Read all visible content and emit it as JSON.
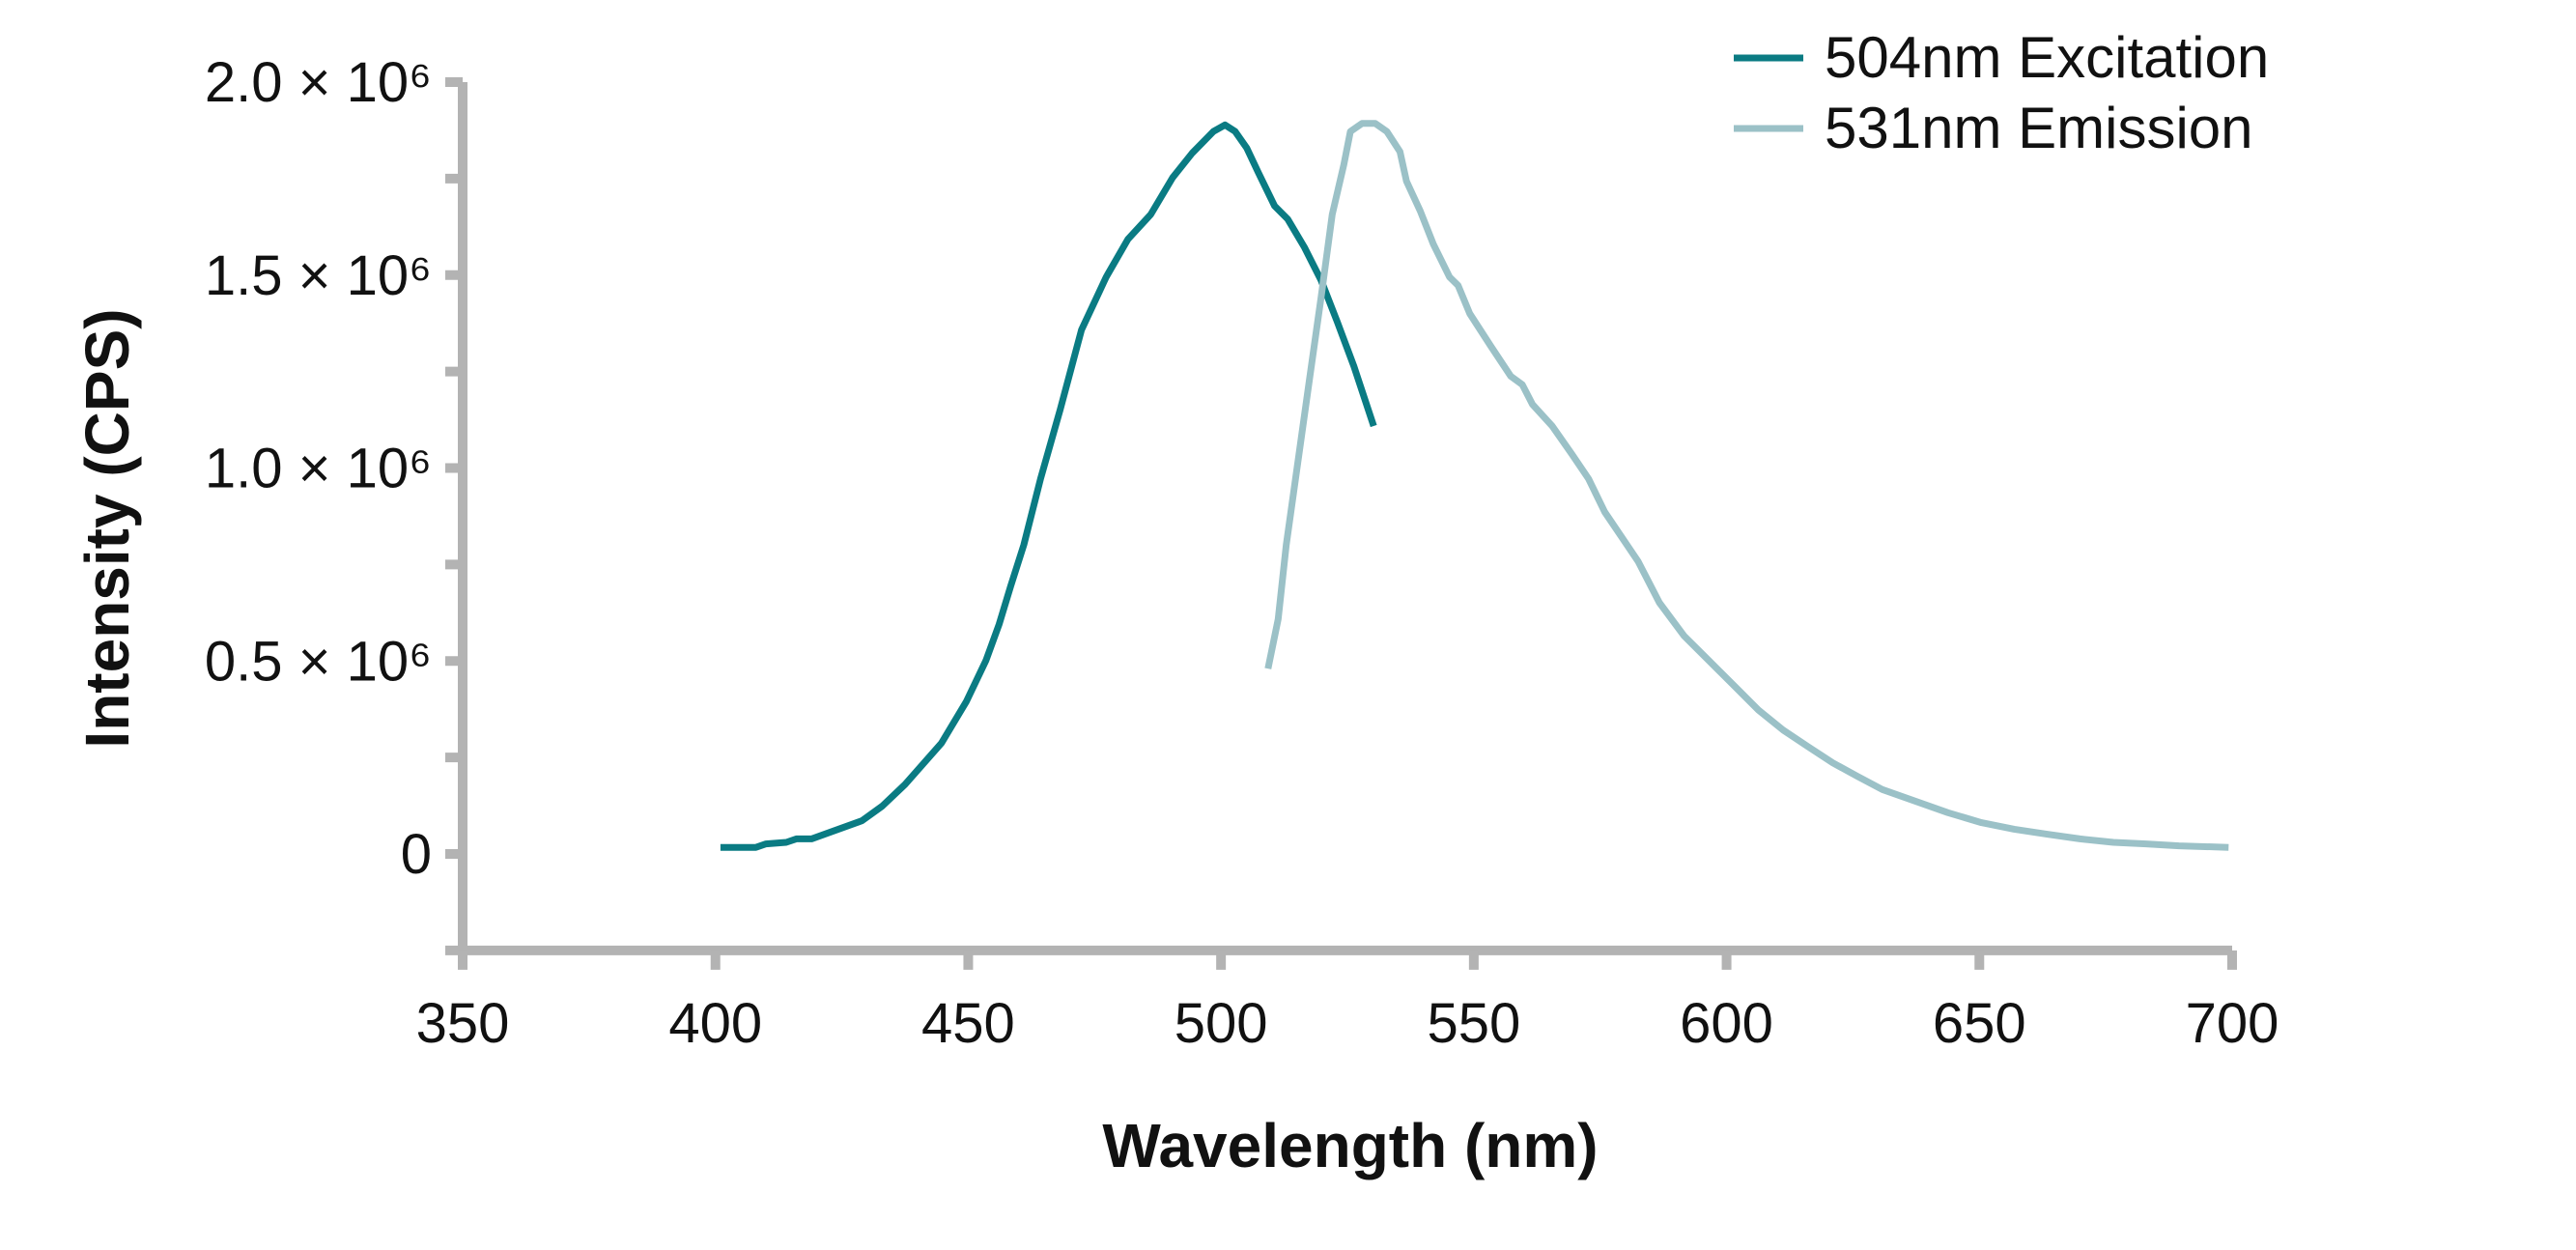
{
  "chart_data": {
    "type": "line",
    "title": "",
    "xlabel": "Wavelength (nm)",
    "ylabel": "Intensity (CPS)",
    "xlim": [
      350,
      700
    ],
    "ylim": [
      -250000,
      2000000
    ],
    "x_ticks": [
      350,
      400,
      450,
      500,
      550,
      600,
      650,
      700
    ],
    "x_tick_labels": [
      "350",
      "400",
      "450",
      "500",
      "550",
      "600",
      "650",
      "700"
    ],
    "y_ticks": [
      0,
      500000,
      1000000,
      1500000,
      2000000
    ],
    "y_tick_labels": [
      "0",
      "0.5 × 10⁶",
      "1.0 × 10⁶",
      "1.5 × 10⁶",
      "2.0 × 10⁶"
    ],
    "y_minor_ticks": [
      250000,
      750000,
      1250000,
      1750000
    ],
    "grid": false,
    "legend_position": "top-right",
    "series": [
      {
        "name": "504nm Excitation",
        "color": "#0a7b83",
        "x": [
          401,
          408,
          410,
          414,
          416,
          419,
          429,
          433,
          437.5,
          444.7,
          449.6,
          453.5,
          456.1,
          458.4,
          461,
          464.3,
          468.2,
          472.4,
          477.3,
          481.6,
          486.1,
          490.4,
          494.3,
          498.5,
          500.8,
          502.8,
          505.1,
          507.4,
          510.6,
          513.2,
          516.5,
          519.8,
          523,
          526.3,
          530.2
        ],
        "y": [
          17000,
          17000,
          26000,
          30000,
          39000,
          39000,
          86000,
          124000,
          180000,
          287000,
          394000,
          501000,
          595000,
          694000,
          801000,
          972000,
          1152000,
          1358000,
          1495000,
          1593000,
          1657000,
          1752000,
          1816000,
          1872000,
          1889000,
          1872000,
          1829000,
          1765000,
          1679000,
          1645000,
          1572000,
          1486000,
          1379000,
          1263000,
          1109000
        ]
      },
      {
        "name": "531nm Emission",
        "color": "#9bc1c7",
        "x": [
          509.3,
          511.3,
          512.9,
          515.2,
          517.5,
          519.8,
          522,
          524.3,
          525.6,
          527.9,
          530.5,
          532.8,
          535.4,
          536.7,
          539.4,
          542,
          545.2,
          546.9,
          549.2,
          553.4,
          557.3,
          559.6,
          561.6,
          565.5,
          569.4,
          572.7,
          575.9,
          579.2,
          582.5,
          586.7,
          591.6,
          596.5,
          601.4,
          606.3,
          611.2,
          616.1,
          621,
          625.9,
          630.8,
          637.3,
          643.8,
          650.4,
          656.9,
          663.4,
          669.9,
          676.5,
          683,
          689.5,
          699.3
        ],
        "y": [
          480000,
          608000,
          801000,
          1015000,
          1229000,
          1443000,
          1657000,
          1786000,
          1872000,
          1893000,
          1893000,
          1872000,
          1820000,
          1743000,
          1666000,
          1580000,
          1495000,
          1473000,
          1400000,
          1315000,
          1238000,
          1216000,
          1165000,
          1109000,
          1036000,
          972000,
          886000,
          822000,
          758000,
          651000,
          565000,
          501000,
          437000,
          373000,
          321000,
          278000,
          236000,
          201000,
          167000,
          137000,
          107000,
          81000,
          64000,
          51000,
          39000,
          30000,
          26000,
          21000,
          17000
        ]
      }
    ]
  },
  "legend": {
    "items": [
      {
        "label": "504nm Excitation",
        "color": "#0a7b83"
      },
      {
        "label": "531nm Emission",
        "color": "#9bc1c7"
      }
    ]
  },
  "axis_color": "#b3b3b3"
}
